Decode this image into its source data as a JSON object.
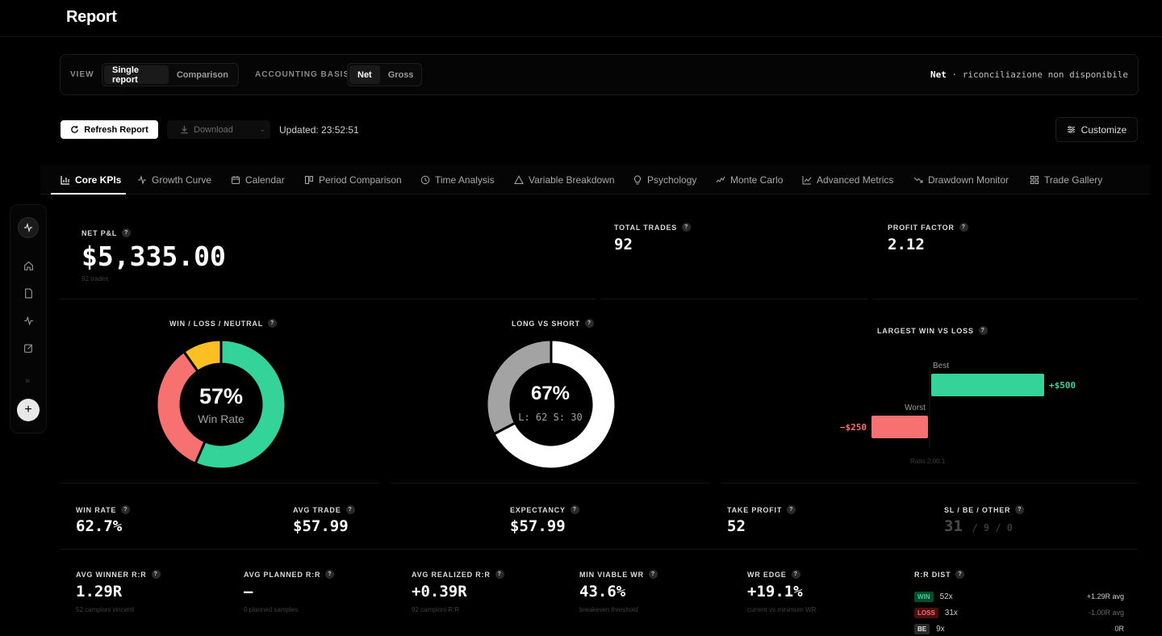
{
  "page": {
    "title": "Report"
  },
  "filters": {
    "view_label": "VIEW",
    "view_options": [
      "Single report",
      "Comparison"
    ],
    "basis_label": "ACCOUNTING BASIS",
    "basis_options": [
      "Net",
      "Gross"
    ],
    "note_bold": "Net",
    "note_rest": " · riconciliazione non disponibile"
  },
  "toolbar": {
    "refresh_label": "Refresh Report",
    "download_label": "Download",
    "updated": "Updated: 23:52:51",
    "customize_label": "Customize"
  },
  "tabs": [
    {
      "label": "Core KPIs",
      "icon": "bar-chart-icon"
    },
    {
      "label": "Growth Curve",
      "icon": "pulse-icon"
    },
    {
      "label": "Calendar",
      "icon": "calendar-icon"
    },
    {
      "label": "Period Comparison",
      "icon": "columns-icon"
    },
    {
      "label": "Time Analysis",
      "icon": "clock-icon"
    },
    {
      "label": "Variable Breakdown",
      "icon": "triangle-icon"
    },
    {
      "label": "Psychology",
      "icon": "bulb-icon"
    },
    {
      "label": "Monte Carlo",
      "icon": "wave-icon"
    },
    {
      "label": "Advanced Metrics",
      "icon": "line-chart-icon"
    },
    {
      "label": "Drawdown Monitor",
      "icon": "trend-down-icon"
    },
    {
      "label": "Trade Gallery",
      "icon": "grid-icon"
    }
  ],
  "kpis": {
    "net_pnl": {
      "label": "NET P&L",
      "value": "$5,335.00",
      "sub": "92 trades"
    },
    "total_trades": {
      "label": "TOTAL TRADES",
      "value": "92"
    },
    "profit_factor": {
      "label": "PROFIT FACTOR",
      "value": "2.12"
    },
    "win_rate": {
      "label": "WIN RATE",
      "value": "62.7%"
    },
    "avg_trade": {
      "label": "AVG TRADE",
      "value": "$57.99"
    },
    "expectancy": {
      "label": "EXPECTANCY",
      "value": "$57.99"
    },
    "take_profit": {
      "label": "TAKE PROFIT",
      "value": "52"
    },
    "sl_be_other": {
      "label": "SL / BE / OTHER",
      "sl": "31",
      "be": "/ 9 / 0"
    },
    "avg_winner_rr": {
      "label": "AVG WINNER R:R",
      "value": "1.29R",
      "sub": "52 campioni vincenti"
    },
    "avg_planned_rr": {
      "label": "AVG PLANNED R:R",
      "value": "—",
      "sub": "0 planned samples"
    },
    "avg_realized_rr": {
      "label": "AVG REALIZED R:R",
      "value": "+0.39R",
      "sub": "92 campioni R:R"
    },
    "min_viable_wr": {
      "label": "MIN VIABLE WR",
      "value": "43.6%",
      "sub": "breakeven threshold"
    },
    "wr_edge": {
      "label": "WR EDGE",
      "value": "+19.1%",
      "sub": "current vs minimum WR"
    },
    "rr_dist": {
      "label": "R:R DIST",
      "rows": [
        {
          "badge": "WIN",
          "count": "52x",
          "avg": "+1.29R avg"
        },
        {
          "badge": "LOSS",
          "count": "31x",
          "avg": "-1.00R avg"
        },
        {
          "badge": "BE",
          "count": "9x",
          "avg": "0R"
        }
      ]
    }
  },
  "charts": {
    "win_loss": {
      "title": "WIN / LOSS / NEUTRAL",
      "center_value": "57%",
      "center_label": "Win Rate"
    },
    "long_short": {
      "title": "LONG VS SHORT",
      "center_value": "67%",
      "center_label": "L: 62  S: 30"
    },
    "largest": {
      "title": "LARGEST WIN VS LOSS",
      "best_label": "Best",
      "worst_label": "Worst",
      "best_value": "+$500",
      "worst_value": "−$250",
      "ratio": "Ratio 2.00:1"
    }
  },
  "chart_data": [
    {
      "type": "pie",
      "title": "WIN / LOSS / NEUTRAL",
      "categories": [
        "Win",
        "Loss",
        "Neutral"
      ],
      "values": [
        52,
        31,
        9
      ],
      "colors": [
        "#34d399",
        "#f87171",
        "#fbbf24"
      ]
    },
    {
      "type": "pie",
      "title": "LONG VS SHORT",
      "categories": [
        "Long",
        "Short"
      ],
      "values": [
        62,
        30
      ],
      "colors": [
        "#ffffff",
        "#a3a3a3"
      ]
    },
    {
      "type": "bar",
      "title": "LARGEST WIN VS LOSS",
      "categories": [
        "Best",
        "Worst"
      ],
      "values": [
        500,
        -250
      ],
      "colors": [
        "#34d399",
        "#f87171"
      ]
    }
  ],
  "colors": {
    "win": "#34d399",
    "loss": "#f87171",
    "neutral": "#fbbf24",
    "long": "#ffffff",
    "short": "#a3a3a3"
  }
}
